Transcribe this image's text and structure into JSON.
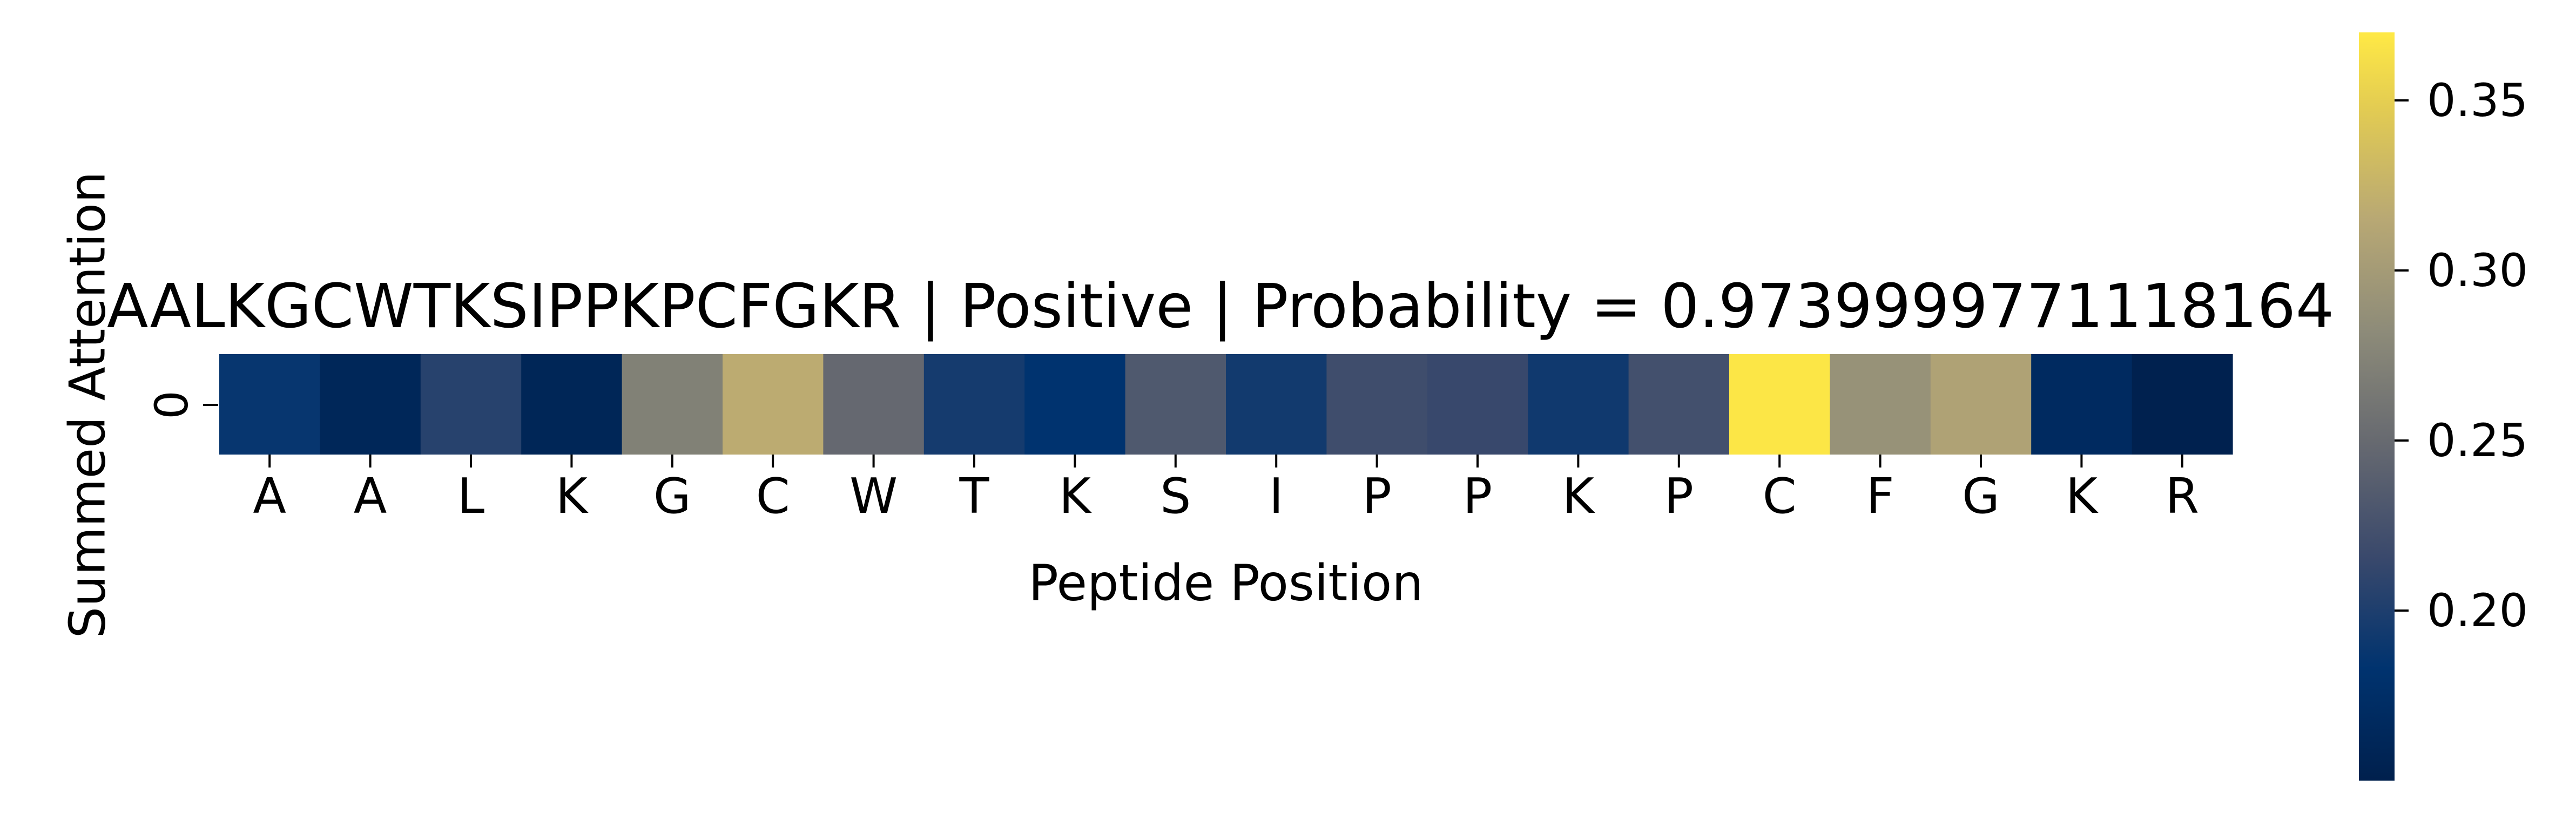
{
  "chart_data": {
    "type": "heatmap",
    "title": "AALKGCWTKSIPPKPCFGKR | Positive | Probability = 0.9739999771118164",
    "xlabel": "Peptide Position",
    "ylabel": "Summed Attention",
    "y_categories": [
      "0"
    ],
    "x_categories": [
      "A",
      "A",
      "L",
      "K",
      "G",
      "C",
      "W",
      "T",
      "K",
      "S",
      "I",
      "P",
      "P",
      "K",
      "P",
      "C",
      "F",
      "G",
      "K",
      "R"
    ],
    "values": [
      0.187,
      0.162,
      0.205,
      0.16,
      0.272,
      0.318,
      0.248,
      0.195,
      0.183,
      0.232,
      0.193,
      0.22,
      0.215,
      0.192,
      0.223,
      0.368,
      0.29,
      0.308,
      0.168,
      0.152
    ],
    "colormap": "cividis",
    "colorbar": {
      "range": [
        0.15,
        0.37
      ],
      "ticks": [
        0.2,
        0.25,
        0.3,
        0.35
      ],
      "tick_labels": [
        "0.20",
        "0.25",
        "0.30",
        "0.35"
      ]
    },
    "grid": false
  }
}
